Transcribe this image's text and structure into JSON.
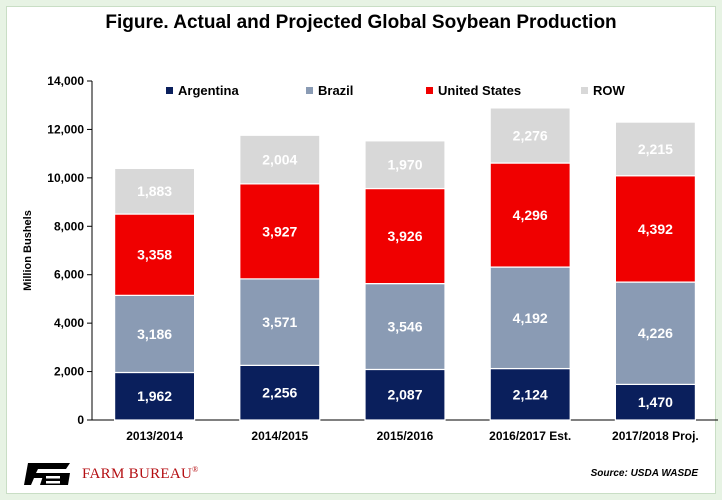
{
  "title": "Figure. Actual and Projected Global Soybean Production",
  "chart_data": {
    "type": "bar",
    "stacked": true,
    "title": "Figure. Actual and Projected Global Soybean Production",
    "xlabel": "",
    "ylabel": "Million Bushels",
    "ylim": [
      0,
      14000
    ],
    "yticks": [
      0,
      2000,
      4000,
      6000,
      8000,
      10000,
      12000,
      14000
    ],
    "ytick_labels": [
      "0",
      "2,000",
      "4,000",
      "6,000",
      "8,000",
      "10,000",
      "12,000",
      "14,000"
    ],
    "legend_position": "top",
    "categories": [
      "2013/2014",
      "2014/2015",
      "2015/2016",
      "2016/2017 Est.",
      "2017/2018 Proj."
    ],
    "series": [
      {
        "name": "Argentina",
        "color": "#0a1f5c",
        "values": [
          1962,
          2256,
          2087,
          2124,
          1470
        ],
        "labels": [
          "1,962",
          "2,256",
          "2,087",
          "2,124",
          "1,470"
        ]
      },
      {
        "name": "Brazil",
        "color": "#8a9bb4",
        "values": [
          3186,
          3571,
          3546,
          4192,
          4226
        ],
        "labels": [
          "3,186",
          "3,571",
          "3,546",
          "4,192",
          "4,226"
        ]
      },
      {
        "name": "United States",
        "color": "#f00000",
        "values": [
          3358,
          3927,
          3926,
          4296,
          4392
        ],
        "labels": [
          "3,358",
          "3,927",
          "3,926",
          "4,296",
          "4,392"
        ]
      },
      {
        "name": "ROW",
        "color": "#d8d8d8",
        "values": [
          1883,
          2004,
          1970,
          2276,
          2215
        ],
        "labels": [
          "1,883",
          "2,004",
          "1,970",
          "2,276",
          "2,215"
        ]
      }
    ]
  },
  "footer": {
    "logo_text": "FARM BUREAU",
    "logo_mark": "®",
    "logo_mark_text": "FB",
    "source": "Source: USDA WASDE",
    "brand_color": "#b40e12"
  }
}
